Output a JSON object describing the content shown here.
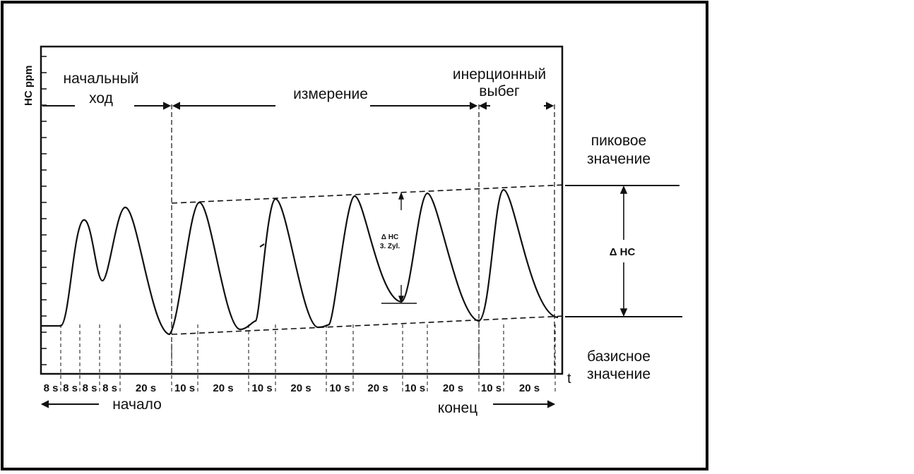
{
  "y_axis_label": "HC ppm",
  "x_axis_label": "t",
  "phases": {
    "warmup": [
      "начальный",
      "ход"
    ],
    "measurement": "измерение",
    "coastdown": [
      "инерционный",
      "выбег"
    ]
  },
  "right_labels": {
    "peak": [
      "пиковое",
      "значение"
    ],
    "delta": "Δ HC",
    "base": [
      "базисное",
      "значение"
    ]
  },
  "cylinder_delta": [
    "Δ HC",
    "3. Zyl."
  ],
  "timeline": [
    "8 s",
    "8 s",
    "8 s",
    "8 s",
    "20 s",
    "10 s",
    "20 s",
    "10 s",
    "20 s",
    "10 s",
    "20 s",
    "10 s",
    "20 s",
    "10 s",
    "20 s"
  ],
  "bottom_labels": {
    "start": "начало",
    "end": "конец"
  },
  "colors": {
    "ink": "#111111",
    "border": "#000000",
    "background": "#ffffff"
  }
}
